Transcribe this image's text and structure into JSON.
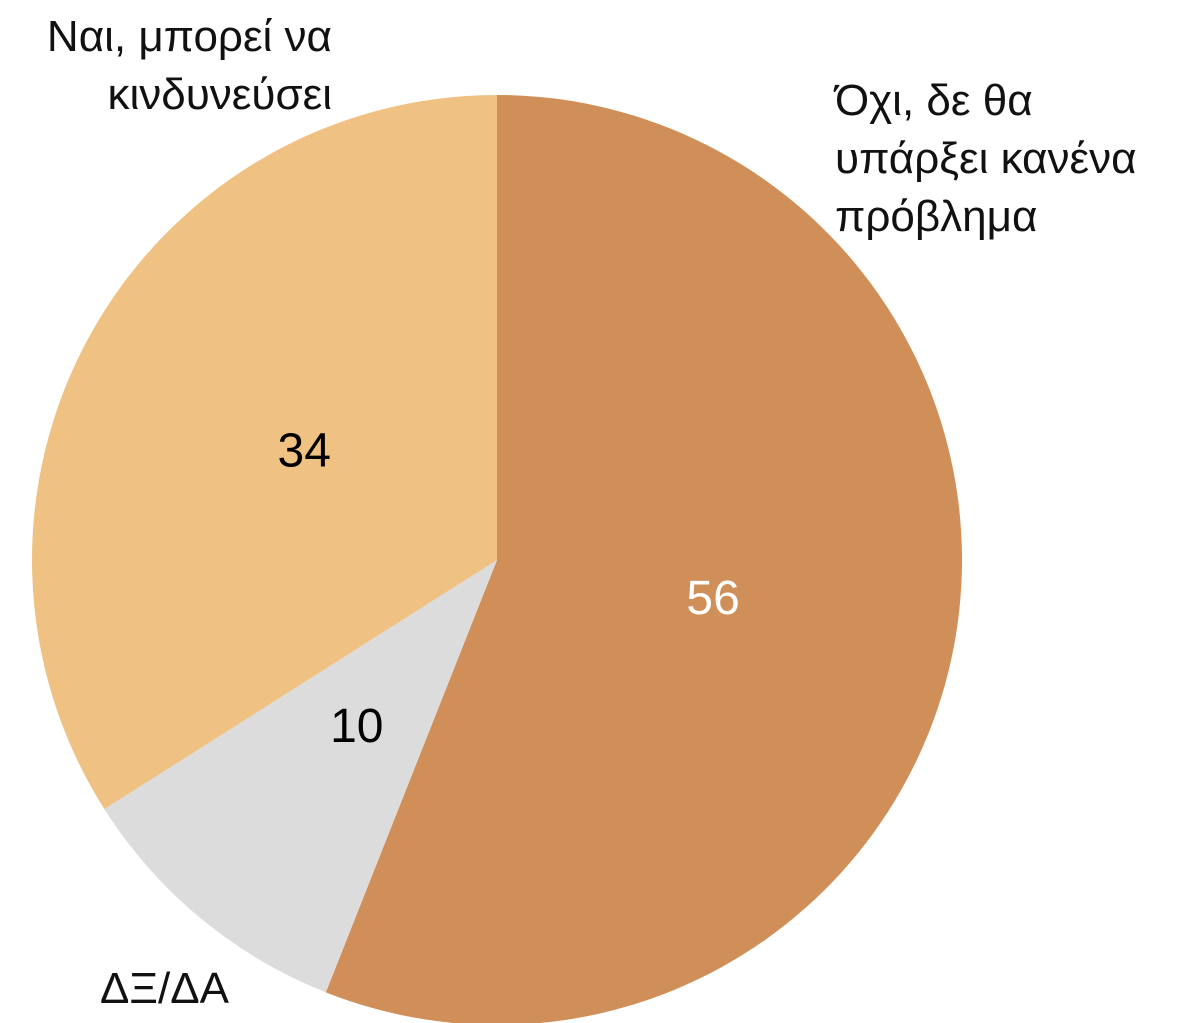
{
  "chart_data": {
    "type": "pie",
    "categories": [
      "Όχι, δε θα υπάρξει κανένα πρόβλημα",
      "ΔΞ/ΔΑ",
      "Ναι, μπορεί να κινδυνεύσει"
    ],
    "values": [
      56,
      10,
      34
    ],
    "colors": [
      "#d08f58",
      "#dcdcdc",
      "#efc283"
    ],
    "value_label_colors": [
      "#ffffff",
      "#000000",
      "#000000"
    ]
  }
}
